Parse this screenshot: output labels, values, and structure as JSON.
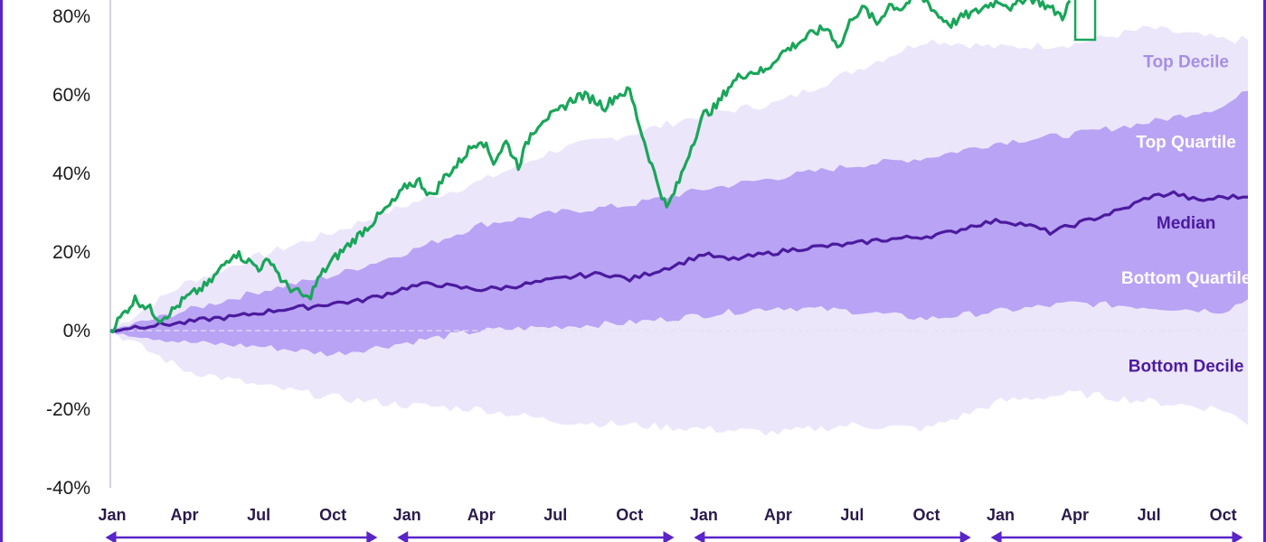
{
  "chart_data": {
    "type": "area",
    "title": "",
    "xlabel": "",
    "ylabel": "",
    "ylim": [
      -40,
      80
    ],
    "y_ticks": [
      80,
      60,
      40,
      20,
      0,
      -20,
      -40
    ],
    "y_tick_labels": [
      "80%",
      "60%",
      "40%",
      "20%",
      "0%",
      "-20%",
      "-40%"
    ],
    "x_tick_labels": [
      "Jan",
      "Apr",
      "Jul",
      "Oct",
      "Jan",
      "Apr",
      "Jul",
      "Oct",
      "Jan",
      "Apr",
      "Jul",
      "Oct",
      "Jan",
      "Apr",
      "Jul",
      "Oct"
    ],
    "x_months": [
      0,
      3,
      6,
      9,
      12,
      15,
      18,
      21,
      24,
      27,
      30,
      33,
      36,
      39,
      42,
      45
    ],
    "grid": false,
    "zero_line": true,
    "band_labels": [
      {
        "text": "Top Decile",
        "month": 43.5,
        "y": 67,
        "color": "#a48ee6"
      },
      {
        "text": "Top Quartile",
        "month": 43.5,
        "y": 46.5,
        "color": "#ffffff"
      },
      {
        "text": "Median",
        "month": 43.5,
        "y": 26,
        "color": "#4b1b9e"
      },
      {
        "text": "Bottom Quartile",
        "month": 43.5,
        "y": 12,
        "color": "#ffffff"
      },
      {
        "text": "Bottom Decile",
        "month": 43.5,
        "y": -10.5,
        "color": "#4b1b9e"
      }
    ],
    "colors": {
      "outer_band": "#ece6fb",
      "inner_band": "#b9a3f4",
      "median": "#4b1b9e",
      "highlight_series": "#1aa55a",
      "arrows": "#5a25c8",
      "frame": "#5a25c8",
      "axis": "#c8c0dc"
    },
    "series": [
      {
        "role": "top_decile",
        "x": [
          0,
          3,
          6,
          9,
          12,
          15,
          18,
          21,
          24,
          27,
          30,
          33,
          36,
          39,
          42,
          45,
          46
        ],
        "values": [
          0,
          12,
          19,
          25,
          32,
          38,
          46,
          50,
          55,
          58,
          66,
          74,
          72,
          73,
          77,
          74,
          74
        ]
      },
      {
        "role": "top_quartile",
        "x": [
          0,
          3,
          6,
          9,
          12,
          15,
          18,
          21,
          24,
          27,
          30,
          33,
          36,
          39,
          42,
          45,
          46
        ],
        "values": [
          0,
          5,
          10,
          14,
          20,
          27,
          30,
          32,
          36,
          39,
          42,
          44,
          48,
          50,
          53,
          57,
          61
        ]
      },
      {
        "role": "median",
        "x": [
          0,
          1,
          2,
          3,
          4,
          5,
          6,
          7,
          8,
          9,
          10,
          11,
          12,
          13,
          14,
          15,
          16,
          17,
          18,
          19,
          20,
          21,
          22,
          23,
          24,
          25,
          26,
          27,
          28,
          29,
          30,
          31,
          32,
          33,
          34,
          35,
          36,
          37,
          38,
          39,
          40,
          41,
          42,
          43,
          44,
          45,
          46
        ],
        "values": [
          0,
          1,
          1.5,
          2,
          3,
          3.5,
          4.5,
          5.5,
          6,
          7,
          7.5,
          9,
          11,
          12,
          11,
          10.5,
          11,
          12,
          13,
          14,
          14.5,
          13,
          15,
          17,
          19.5,
          18,
          19,
          20,
          21,
          21.5,
          22,
          23,
          23.5,
          24,
          25,
          27,
          28,
          27,
          25,
          27,
          29,
          31,
          34,
          35,
          33,
          34,
          34
        ]
      },
      {
        "role": "bottom_quartile",
        "x": [
          0,
          3,
          6,
          9,
          12,
          15,
          18,
          21,
          24,
          27,
          30,
          33,
          36,
          39,
          42,
          45,
          46
        ],
        "values": [
          0,
          -3,
          -4,
          -6,
          -3,
          0,
          1,
          2,
          4,
          6,
          5,
          3,
          5,
          7,
          6,
          5,
          8
        ]
      },
      {
        "role": "bottom_decile",
        "x": [
          0,
          3,
          6,
          9,
          12,
          15,
          18,
          21,
          24,
          27,
          30,
          33,
          36,
          39,
          42,
          45,
          46
        ],
        "values": [
          0,
          -10,
          -14,
          -17,
          -19,
          -20,
          -23,
          -24,
          -25,
          -26,
          -24,
          -25,
          -18,
          -16,
          -18,
          -20,
          -24
        ]
      },
      {
        "role": "highlight",
        "x": [
          0,
          0.5,
          1,
          1.5,
          2,
          2.5,
          3,
          3.5,
          4,
          4.5,
          5,
          5.5,
          6,
          6.5,
          7,
          7.5,
          8,
          8.5,
          9,
          9.5,
          10,
          10.5,
          11,
          11.5,
          12,
          12.5,
          13,
          13.5,
          14,
          14.5,
          15,
          15.5,
          16,
          16.5,
          17,
          17.5,
          18,
          18.5,
          19,
          19.5,
          20,
          20.5,
          21,
          21.5,
          22,
          22.5,
          23,
          23.5,
          24,
          24.5,
          25,
          25.5,
          26,
          26.5,
          27,
          27.5,
          28,
          28.5,
          29,
          29.5,
          30,
          30.5,
          31,
          31.5,
          32,
          32.5,
          33,
          33.5,
          34,
          34.5,
          35,
          35.5,
          36,
          36.5,
          37,
          37.5,
          38,
          38.5,
          38.8
        ],
        "values": [
          0,
          4,
          8,
          6,
          3,
          5,
          8,
          10,
          12,
          16,
          20,
          18,
          16,
          18,
          12,
          10,
          8,
          14,
          18,
          21,
          24,
          27,
          30,
          33,
          37,
          38,
          34,
          39,
          42,
          46,
          49,
          43,
          48,
          42,
          50,
          54,
          55,
          58,
          60,
          59,
          57,
          60,
          61,
          50,
          40,
          31,
          38,
          47,
          55,
          57,
          62,
          65,
          66,
          66,
          70,
          72,
          74,
          76,
          77,
          72,
          80,
          82,
          78,
          83,
          82,
          85,
          84,
          80,
          78,
          80,
          81,
          83,
          84,
          82,
          85,
          84,
          82,
          80,
          84
        ],
        "end_marker": {
          "month": 39.2,
          "y": 84
        }
      }
    ]
  }
}
